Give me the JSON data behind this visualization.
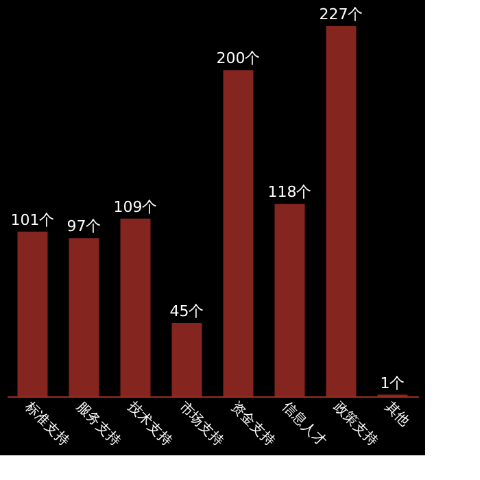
{
  "chart_data": {
    "type": "bar",
    "categories": [
      "标准支持",
      "服务支持",
      "技术支持",
      "市场支持",
      "资金支持",
      "信息人才",
      "政策支持",
      "其他"
    ],
    "values": [
      101,
      97,
      109,
      45,
      200,
      118,
      227,
      1
    ],
    "value_labels": [
      "101个",
      "97个",
      "109个",
      "45个",
      "200个",
      "118个",
      "227个",
      "1个"
    ],
    "color": "#9b2b25",
    "grid": false,
    "tick_labels": "x"
  }
}
